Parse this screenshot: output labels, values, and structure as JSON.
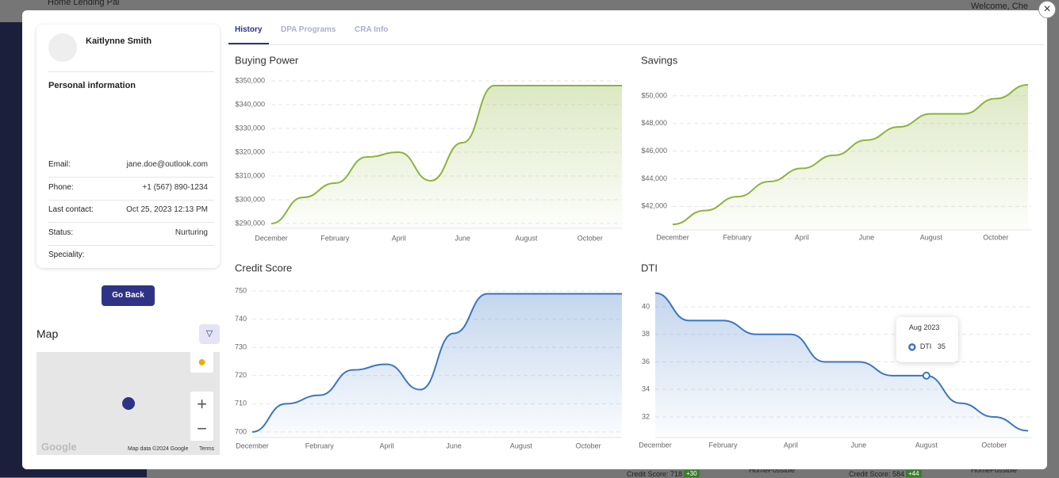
{
  "background": {
    "app_title": "Home Lending Pal",
    "welcome": "Welcome, Che",
    "bottom": [
      "Credit Score: 718",
      "+30",
      "HomePossible",
      "Credit Score: 584",
      "+44",
      "HomePossible"
    ]
  },
  "profile": {
    "name": "Kaitlynne Smith",
    "section": "Personal information",
    "fields": [
      {
        "label": "Email:",
        "value": "jane.doe@outlook.com"
      },
      {
        "label": "Phone:",
        "value": "+1 (567) 890-1234"
      },
      {
        "label": "Last contact:",
        "value": "Oct 25, 2023 12:13 PM"
      },
      {
        "label": "Status:",
        "value": "Nurturing"
      },
      {
        "label": "Speciality:",
        "value": ""
      }
    ]
  },
  "button": "Go Back",
  "map": {
    "title": "Map",
    "logo": "Google",
    "attribution": "Map data ©2024 Google",
    "terms": "Terms"
  },
  "tabs": [
    "History",
    "DPA Programs",
    "CRA Info"
  ],
  "chart_data": [
    {
      "type": "area",
      "title": "Buying Power",
      "color": "#8db33a",
      "categories": [
        "December",
        null,
        "February",
        null,
        "April",
        null,
        "June",
        null,
        "August",
        null,
        "October",
        null
      ],
      "values": [
        290000,
        301000,
        307000,
        318000,
        320000,
        308000,
        324000,
        348000,
        348000,
        348000,
        348000,
        348000
      ],
      "ylim": [
        288000,
        352000
      ],
      "yticks": [
        {
          "value": 290000,
          "label": "$290,000"
        },
        {
          "value": 300000,
          "label": "$300,000"
        },
        {
          "value": 310000,
          "label": "$310,000"
        },
        {
          "value": 320000,
          "label": "$320,000"
        },
        {
          "value": 330000,
          "label": "$330,000"
        },
        {
          "value": 340000,
          "label": "$340,000"
        },
        {
          "value": 350000,
          "label": "$350,000"
        }
      ],
      "grid": true
    },
    {
      "type": "area",
      "title": "Savings",
      "color": "#8db33a",
      "categories": [
        "December",
        null,
        "February",
        null,
        "April",
        null,
        "June",
        null,
        "August",
        null,
        "October",
        null
      ],
      "values": [
        40700,
        41700,
        42700,
        43800,
        44750,
        45700,
        46800,
        47750,
        48700,
        48700,
        49800,
        50800
      ],
      "ylim": [
        40300,
        51200
      ],
      "yticks": [
        {
          "value": 42000,
          "label": "$42,000"
        },
        {
          "value": 44000,
          "label": "$44,000"
        },
        {
          "value": 46000,
          "label": "$46,000"
        },
        {
          "value": 48000,
          "label": "$48,000"
        },
        {
          "value": 50000,
          "label": "$50,000"
        }
      ],
      "grid": true
    },
    {
      "type": "area",
      "title": "Credit Score",
      "color": "#3a75c4",
      "categories": [
        "December",
        null,
        "February",
        null,
        "April",
        null,
        "June",
        null,
        "August",
        null,
        "October",
        null
      ],
      "values": [
        700,
        710,
        713,
        722,
        724,
        715,
        735,
        749,
        749,
        749,
        749,
        749
      ],
      "ylim": [
        698,
        752
      ],
      "yticks": [
        700,
        710,
        720,
        730,
        740,
        750
      ],
      "grid": true
    },
    {
      "type": "area",
      "title": "DTI",
      "color": "#3a75c4",
      "categories": [
        "December",
        null,
        "February",
        null,
        "April",
        null,
        "June",
        null,
        "August",
        null,
        "October",
        null
      ],
      "values": [
        41,
        39,
        39,
        38,
        38,
        36,
        36,
        35,
        35,
        33,
        32,
        31
      ],
      "ylim": [
        30.5,
        41.5
      ],
      "yticks": [
        32,
        34,
        36,
        38,
        40
      ],
      "grid": true,
      "tooltip": {
        "title": "Aug 2023",
        "series": "DTI",
        "index": 8
      }
    }
  ]
}
